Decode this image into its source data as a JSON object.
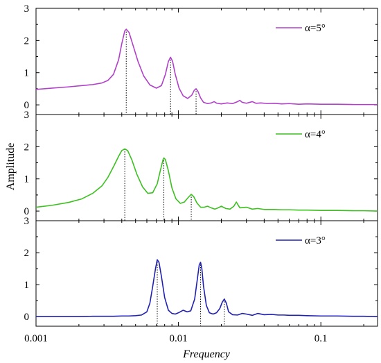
{
  "chart_data": {
    "type": "line",
    "xlabel": "Frequency",
    "ylabel": "Amplitude",
    "xscale": "log",
    "xlim": [
      0.001,
      0.25
    ],
    "x_ticks": [
      {
        "value": 0.001,
        "label": "0.001"
      },
      {
        "value": 0.01,
        "label": "0.01"
      },
      {
        "value": 0.1,
        "label": "0.1"
      }
    ],
    "ylim": [
      -0.3,
      3
    ],
    "y_ticks": [
      0,
      1,
      2,
      3
    ],
    "grid": false,
    "legend_position": "top-right",
    "panels": [
      {
        "legend": "α=5°",
        "color": "#b040c8",
        "dotted_markers": [
          {
            "x": 0.0043,
            "y": 2.35
          },
          {
            "x": 0.0088,
            "y": 1.48
          },
          {
            "x": 0.0133,
            "y": 0.5
          }
        ],
        "points": [
          [
            0.001,
            0.48
          ],
          [
            0.0013,
            0.52
          ],
          [
            0.0017,
            0.56
          ],
          [
            0.0021,
            0.6
          ],
          [
            0.0025,
            0.63
          ],
          [
            0.0029,
            0.68
          ],
          [
            0.0032,
            0.76
          ],
          [
            0.0035,
            0.95
          ],
          [
            0.0038,
            1.4
          ],
          [
            0.004,
            1.9
          ],
          [
            0.0042,
            2.3
          ],
          [
            0.0043,
            2.35
          ],
          [
            0.0045,
            2.25
          ],
          [
            0.0048,
            1.85
          ],
          [
            0.0052,
            1.35
          ],
          [
            0.0057,
            0.9
          ],
          [
            0.0063,
            0.62
          ],
          [
            0.007,
            0.52
          ],
          [
            0.0076,
            0.6
          ],
          [
            0.0081,
            0.95
          ],
          [
            0.0085,
            1.35
          ],
          [
            0.0088,
            1.48
          ],
          [
            0.0091,
            1.35
          ],
          [
            0.0095,
            0.95
          ],
          [
            0.0101,
            0.52
          ],
          [
            0.0108,
            0.28
          ],
          [
            0.0116,
            0.2
          ],
          [
            0.0124,
            0.3
          ],
          [
            0.0129,
            0.45
          ],
          [
            0.0133,
            0.5
          ],
          [
            0.0137,
            0.42
          ],
          [
            0.0143,
            0.22
          ],
          [
            0.015,
            0.08
          ],
          [
            0.016,
            0.04
          ],
          [
            0.017,
            0.06
          ],
          [
            0.0178,
            0.1
          ],
          [
            0.0186,
            0.05
          ],
          [
            0.02,
            0.03
          ],
          [
            0.022,
            0.06
          ],
          [
            0.024,
            0.04
          ],
          [
            0.026,
            0.1
          ],
          [
            0.027,
            0.14
          ],
          [
            0.028,
            0.08
          ],
          [
            0.03,
            0.05
          ],
          [
            0.033,
            0.1
          ],
          [
            0.035,
            0.05
          ],
          [
            0.038,
            0.06
          ],
          [
            0.042,
            0.04
          ],
          [
            0.047,
            0.05
          ],
          [
            0.053,
            0.03
          ],
          [
            0.06,
            0.04
          ],
          [
            0.07,
            0.02
          ],
          [
            0.08,
            0.03
          ],
          [
            0.1,
            0.02
          ],
          [
            0.13,
            0.02
          ],
          [
            0.17,
            0.01
          ],
          [
            0.2,
            0.01
          ],
          [
            0.25,
            0.01
          ]
        ]
      },
      {
        "legend": "α=4°",
        "color": "#3cc020",
        "dotted_markers": [
          {
            "x": 0.0042,
            "y": 1.93
          },
          {
            "x": 0.0079,
            "y": 1.65
          },
          {
            "x": 0.0123,
            "y": 0.52
          }
        ],
        "points": [
          [
            0.001,
            0.12
          ],
          [
            0.0013,
            0.18
          ],
          [
            0.0017,
            0.27
          ],
          [
            0.0021,
            0.38
          ],
          [
            0.0025,
            0.55
          ],
          [
            0.0029,
            0.78
          ],
          [
            0.0032,
            1.05
          ],
          [
            0.0035,
            1.38
          ],
          [
            0.0038,
            1.7
          ],
          [
            0.004,
            1.88
          ],
          [
            0.0042,
            1.93
          ],
          [
            0.0044,
            1.88
          ],
          [
            0.0047,
            1.6
          ],
          [
            0.0051,
            1.15
          ],
          [
            0.0056,
            0.75
          ],
          [
            0.0061,
            0.55
          ],
          [
            0.0066,
            0.57
          ],
          [
            0.0071,
            0.85
          ],
          [
            0.0075,
            1.3
          ],
          [
            0.0078,
            1.6
          ],
          [
            0.0079,
            1.65
          ],
          [
            0.0081,
            1.6
          ],
          [
            0.0085,
            1.25
          ],
          [
            0.009,
            0.72
          ],
          [
            0.0096,
            0.38
          ],
          [
            0.0103,
            0.24
          ],
          [
            0.011,
            0.28
          ],
          [
            0.0117,
            0.42
          ],
          [
            0.0123,
            0.52
          ],
          [
            0.0128,
            0.45
          ],
          [
            0.0135,
            0.25
          ],
          [
            0.0143,
            0.12
          ],
          [
            0.0152,
            0.12
          ],
          [
            0.016,
            0.15
          ],
          [
            0.017,
            0.1
          ],
          [
            0.018,
            0.06
          ],
          [
            0.019,
            0.1
          ],
          [
            0.02,
            0.15
          ],
          [
            0.0215,
            0.08
          ],
          [
            0.023,
            0.06
          ],
          [
            0.0245,
            0.15
          ],
          [
            0.0255,
            0.28
          ],
          [
            0.027,
            0.1
          ],
          [
            0.03,
            0.12
          ],
          [
            0.033,
            0.06
          ],
          [
            0.036,
            0.08
          ],
          [
            0.04,
            0.05
          ],
          [
            0.047,
            0.05
          ],
          [
            0.053,
            0.04
          ],
          [
            0.06,
            0.04
          ],
          [
            0.07,
            0.03
          ],
          [
            0.08,
            0.03
          ],
          [
            0.1,
            0.02
          ],
          [
            0.13,
            0.02
          ],
          [
            0.17,
            0.01
          ],
          [
            0.2,
            0.01
          ],
          [
            0.25,
            0.0
          ]
        ]
      },
      {
        "legend": "α=3°",
        "color": "#2020b0",
        "dotted_markers": [
          {
            "x": 0.0071,
            "y": 1.78
          },
          {
            "x": 0.0143,
            "y": 1.7
          },
          {
            "x": 0.021,
            "y": 0.55
          }
        ],
        "points": [
          [
            0.001,
            0.0
          ],
          [
            0.0015,
            0.0
          ],
          [
            0.002,
            0.0
          ],
          [
            0.0025,
            0.01
          ],
          [
            0.003,
            0.01
          ],
          [
            0.0035,
            0.01
          ],
          [
            0.004,
            0.02
          ],
          [
            0.0045,
            0.02
          ],
          [
            0.005,
            0.03
          ],
          [
            0.0055,
            0.05
          ],
          [
            0.006,
            0.15
          ],
          [
            0.0063,
            0.42
          ],
          [
            0.0066,
            0.95
          ],
          [
            0.0069,
            1.5
          ],
          [
            0.0071,
            1.78
          ],
          [
            0.0073,
            1.7
          ],
          [
            0.0076,
            1.25
          ],
          [
            0.008,
            0.6
          ],
          [
            0.0085,
            0.2
          ],
          [
            0.009,
            0.1
          ],
          [
            0.0095,
            0.08
          ],
          [
            0.01,
            0.12
          ],
          [
            0.0108,
            0.2
          ],
          [
            0.0115,
            0.15
          ],
          [
            0.0122,
            0.18
          ],
          [
            0.013,
            0.55
          ],
          [
            0.0136,
            1.2
          ],
          [
            0.014,
            1.62
          ],
          [
            0.0143,
            1.7
          ],
          [
            0.0146,
            1.5
          ],
          [
            0.015,
            0.95
          ],
          [
            0.0157,
            0.35
          ],
          [
            0.0165,
            0.12
          ],
          [
            0.0175,
            0.08
          ],
          [
            0.0185,
            0.12
          ],
          [
            0.0195,
            0.25
          ],
          [
            0.0203,
            0.45
          ],
          [
            0.021,
            0.55
          ],
          [
            0.0217,
            0.42
          ],
          [
            0.0225,
            0.15
          ],
          [
            0.024,
            0.06
          ],
          [
            0.026,
            0.05
          ],
          [
            0.028,
            0.1
          ],
          [
            0.03,
            0.08
          ],
          [
            0.033,
            0.04
          ],
          [
            0.036,
            0.1
          ],
          [
            0.04,
            0.06
          ],
          [
            0.045,
            0.07
          ],
          [
            0.05,
            0.05
          ],
          [
            0.055,
            0.05
          ],
          [
            0.06,
            0.04
          ],
          [
            0.07,
            0.04
          ],
          [
            0.08,
            0.03
          ],
          [
            0.1,
            0.02
          ],
          [
            0.13,
            0.02
          ],
          [
            0.17,
            0.01
          ],
          [
            0.2,
            0.01
          ],
          [
            0.25,
            0.0
          ]
        ]
      }
    ]
  }
}
